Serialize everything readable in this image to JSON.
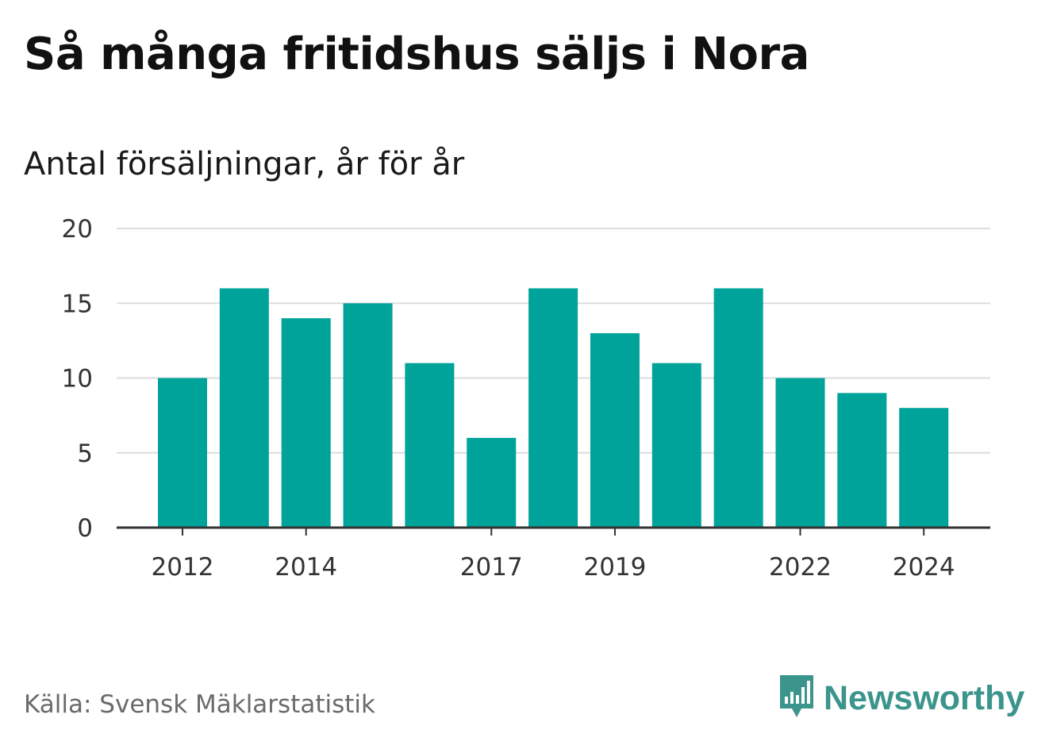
{
  "title": "Så många fritidshus säljs i Nora",
  "subtitle": "Antal försäljningar, år för år",
  "source": "Källa: Svensk Mäklarstatistik",
  "brand": {
    "name": "Newsworthy",
    "color": "#3b958c",
    "icon": "bar-chart-speech-bubble-icon"
  },
  "colors": {
    "bar": "#00a39a",
    "grid": "#dddddd",
    "axis": "#333333"
  },
  "chart_data": {
    "type": "bar",
    "categories": [
      "2012",
      "2013",
      "2014",
      "2015",
      "2016",
      "2017",
      "2018",
      "2019",
      "2020",
      "2021",
      "2022",
      "2023",
      "2024"
    ],
    "values": [
      10,
      16,
      14,
      15,
      11,
      6,
      16,
      13,
      11,
      16,
      10,
      9,
      8
    ],
    "x_tick_labels": [
      "2012",
      "2014",
      "2017",
      "2019",
      "2022",
      "2024"
    ],
    "y_ticks": [
      0,
      5,
      10,
      15,
      20
    ],
    "ylim": [
      0,
      20
    ],
    "grid": true,
    "xlabel": "",
    "ylabel": ""
  }
}
